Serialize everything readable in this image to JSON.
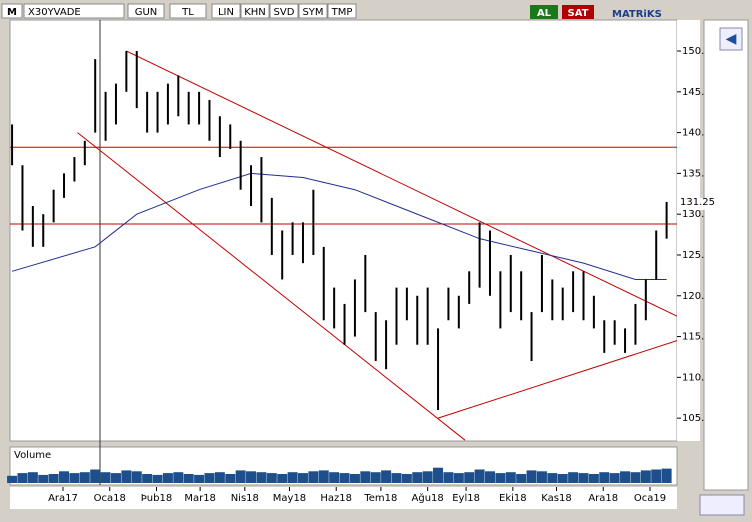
{
  "toolbar": {
    "logo": "M",
    "symbol": "X30YVADE",
    "buttons": [
      "GUN",
      "TL",
      "LIN",
      "KHN",
      "SVD",
      "SYM",
      "TMP"
    ],
    "buy": "AL",
    "sell": "SAT",
    "brand": "MATRiKS"
  },
  "chart_data": {
    "type": "ohlc",
    "high": [
      141,
      136,
      131,
      130,
      133,
      135,
      137,
      139,
      149,
      145,
      146,
      150,
      150,
      145,
      145,
      146,
      147,
      145,
      145,
      144,
      142,
      141,
      139,
      136,
      137,
      132,
      128,
      129,
      129,
      133,
      126,
      121,
      119,
      122,
      125,
      118,
      117,
      121,
      121,
      120,
      121,
      116,
      121,
      120,
      123,
      129,
      128,
      123,
      125,
      123,
      118,
      125,
      122,
      121,
      123,
      123,
      120,
      117,
      117,
      116,
      119,
      122,
      128,
      131.5
    ],
    "low": [
      136,
      128,
      126,
      126,
      129,
      132,
      134,
      136,
      140,
      139,
      141,
      145,
      143,
      140,
      140,
      141,
      142,
      141,
      141,
      139,
      137,
      138,
      133,
      131,
      129,
      125,
      122,
      125,
      124,
      125,
      117,
      116,
      114,
      115,
      118,
      112,
      111,
      114,
      117,
      114,
      114,
      106,
      117,
      116,
      119,
      121,
      120,
      116,
      118,
      117,
      112,
      118,
      117,
      117,
      118,
      117,
      116,
      113,
      114,
      113,
      114,
      117,
      122,
      127
    ],
    "color": "#000000",
    "ma": {
      "x": [
        0,
        8,
        12,
        18,
        23,
        28,
        33,
        40,
        45,
        50,
        55,
        60,
        63
      ],
      "values": [
        123,
        126,
        130,
        133,
        135,
        134.5,
        133,
        129.5,
        127,
        125.5,
        124,
        122,
        122
      ],
      "color": "#1f2f8f"
    },
    "hlines": [
      138.2,
      128.8
    ],
    "hline_color": "#c00000",
    "trendlines": [
      {
        "x": [
          11,
          64
        ],
        "y": [
          150,
          117.5
        ]
      },
      {
        "x": [
          6.3,
          43.6
        ],
        "y": [
          140,
          102.3
        ]
      },
      {
        "x": [
          41,
          64
        ],
        "y": [
          105,
          114.5
        ]
      }
    ],
    "last_price": 131.25,
    "xlim": [
      -0.2,
      64
    ],
    "ylim": [
      102.2,
      153.8
    ],
    "yticks": [
      {
        "value": 105,
        "label": "105."
      },
      {
        "value": 110,
        "label": "110."
      },
      {
        "value": 115,
        "label": "115."
      },
      {
        "value": 120,
        "label": "120."
      },
      {
        "value": 125,
        "label": "125."
      },
      {
        "value": 130,
        "label": "130."
      },
      {
        "value": 135,
        "label": "135."
      },
      {
        "value": 140,
        "label": "140."
      },
      {
        "value": 145,
        "label": "145."
      },
      {
        "value": 150,
        "label": "150."
      }
    ],
    "xticks": [
      {
        "value": 4.9,
        "label": "Ara17"
      },
      {
        "value": 9.4,
        "label": "Oca18"
      },
      {
        "value": 13.9,
        "label": "Þub18"
      },
      {
        "value": 18.1,
        "label": "Mar18"
      },
      {
        "value": 22.4,
        "label": "Nis18"
      },
      {
        "value": 26.7,
        "label": "May18"
      },
      {
        "value": 31.2,
        "label": "Haz18"
      },
      {
        "value": 35.5,
        "label": "Tem18"
      },
      {
        "value": 40,
        "label": "Ağu18"
      },
      {
        "value": 43.7,
        "label": "Eyl18"
      },
      {
        "value": 48.2,
        "label": "Eki18"
      },
      {
        "value": 52.4,
        "label": "Kas18"
      },
      {
        "value": 56.9,
        "label": "Ara18"
      },
      {
        "value": 61.4,
        "label": "Oca19"
      }
    ],
    "volume_label": "Volume",
    "volume": [
      40,
      55,
      60,
      45,
      50,
      65,
      55,
      60,
      75,
      60,
      55,
      70,
      65,
      50,
      45,
      55,
      60,
      50,
      45,
      55,
      60,
      50,
      70,
      65,
      60,
      55,
      50,
      60,
      55,
      65,
      70,
      60,
      55,
      50,
      65,
      60,
      70,
      55,
      50,
      60,
      65,
      85,
      60,
      55,
      60,
      75,
      65,
      55,
      60,
      50,
      70,
      65,
      55,
      50,
      60,
      55,
      50,
      60,
      55,
      65,
      60,
      70,
      75,
      80
    ],
    "volume_color": "#1c4f8c",
    "volume_ylim": [
      0,
      100
    ]
  }
}
